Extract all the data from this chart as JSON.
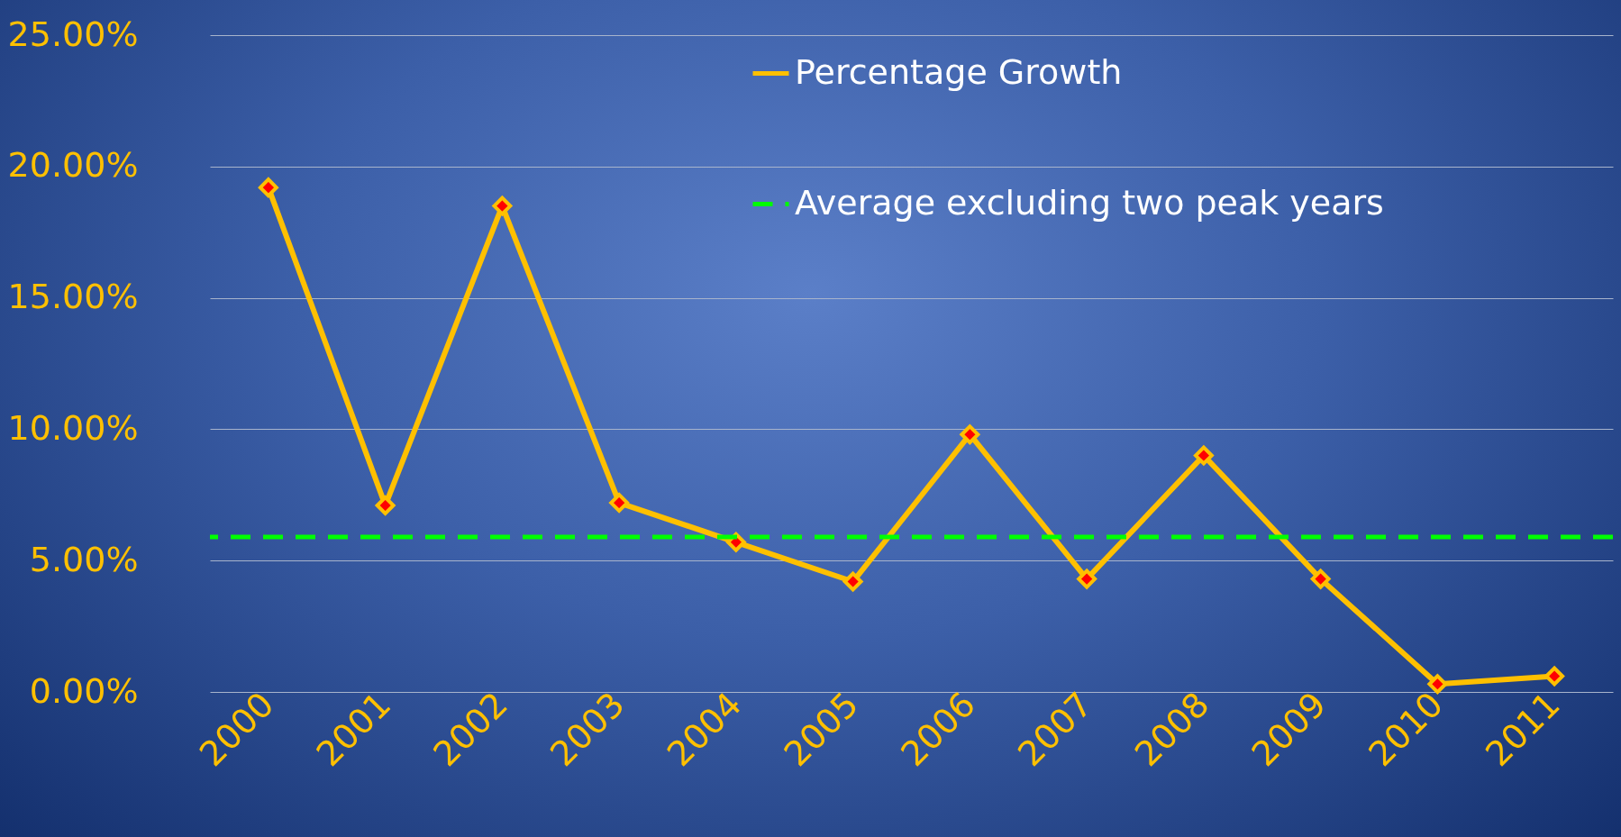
{
  "chart_data": {
    "type": "line",
    "categories": [
      "2000",
      "2001",
      "2002",
      "2003",
      "2004",
      "2005",
      "2006",
      "2007",
      "2008",
      "2009",
      "2010",
      "2011"
    ],
    "series": [
      {
        "name": "Percentage Growth",
        "color": "#ffc000",
        "values": [
          19.2,
          7.1,
          18.5,
          7.2,
          5.7,
          4.2,
          9.8,
          4.3,
          9.0,
          4.3,
          0.3,
          0.6
        ]
      }
    ],
    "ylim": [
      0,
      25
    ],
    "yticks": [
      {
        "value": 0,
        "label": "0.00%"
      },
      {
        "value": 5,
        "label": "5.00%"
      },
      {
        "value": 10,
        "label": "10.00%"
      },
      {
        "value": 15,
        "label": "15.00%"
      },
      {
        "value": 20,
        "label": "20.00%"
      },
      {
        "value": 25,
        "label": "25.00%"
      }
    ],
    "ref_lines": [
      {
        "axis": "y",
        "value": 5.9,
        "label": "Average excluding two peak years",
        "color": "#00ff00",
        "line_style": "dashed"
      }
    ],
    "grid": "y",
    "legend": "top",
    "marker": "diamond",
    "line_style": "solid"
  }
}
